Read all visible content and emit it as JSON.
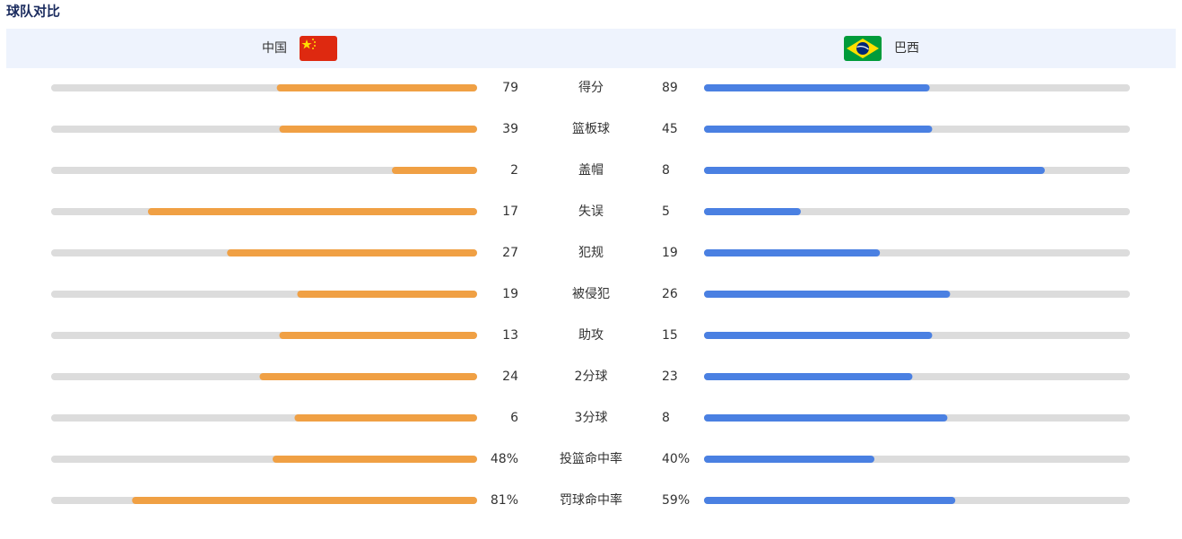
{
  "header": {
    "title": "球队对比",
    "home": "中国",
    "away": "巴西"
  },
  "stats": [
    {
      "name": "得分",
      "home": 79,
      "away": 89
    },
    {
      "name": "篮板球",
      "home": 39,
      "away": 45
    },
    {
      "name": "盖帽",
      "home": 2,
      "away": 8
    },
    {
      "name": "失误",
      "home": 17,
      "away": 5
    },
    {
      "name": "犯规",
      "home": 27,
      "away": 19
    },
    {
      "name": "被侵犯",
      "home": 19,
      "away": 26
    },
    {
      "name": "助攻",
      "home": 13,
      "away": 15
    },
    {
      "name": "2分球",
      "home": 24,
      "away": 23
    },
    {
      "name": "3分球",
      "home": 6,
      "away": 8
    },
    {
      "name": "投篮命中率",
      "home": 48,
      "away": 40,
      "home_label": "48%",
      "away_label": "40%",
      "xlim": [
        0,
        100
      ]
    },
    {
      "name": "罚球命中率",
      "home": 81,
      "away": 59,
      "home_label": "81%",
      "away_label": "59%",
      "xlim": [
        0,
        100
      ]
    }
  ],
  "colors": {
    "home": "#f0a044",
    "away": "#4a80e2"
  }
}
